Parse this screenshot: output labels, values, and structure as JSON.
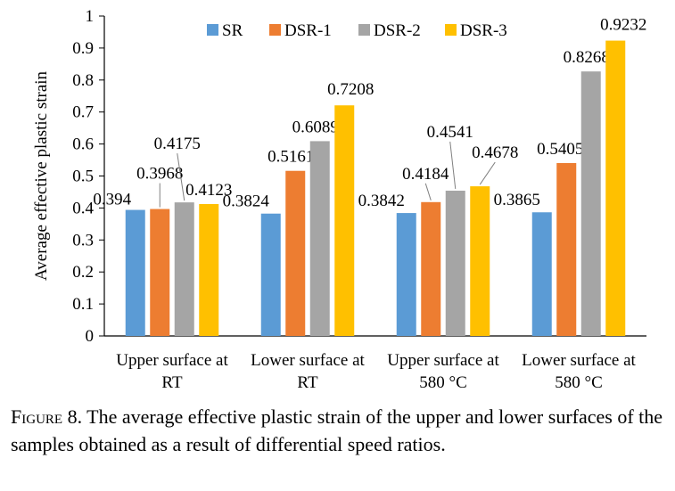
{
  "chart_data": {
    "type": "bar",
    "ylabel": "Average  effective plastic strain",
    "xlabel": "",
    "ylim": [
      0,
      1
    ],
    "yticks": [
      "0",
      "0.1",
      "0.2",
      "0.3",
      "0.4",
      "0.5",
      "0.6",
      "0.7",
      "0.8",
      "0.9",
      "1"
    ],
    "categories": [
      [
        "Upper surface at",
        "RT"
      ],
      [
        "Lower surface at",
        "RT"
      ],
      [
        "Upper surface at",
        "580 °C"
      ],
      [
        "Lower surface at",
        "580 °C"
      ]
    ],
    "series": [
      {
        "name": "SR",
        "color": "#5b9bd5",
        "values": [
          0.394,
          0.3824,
          0.3842,
          0.3865
        ],
        "labels": [
          "0.394",
          "0.3824",
          "0.3842",
          "0.3865"
        ]
      },
      {
        "name": "DSR-1",
        "color": "#ed7d31",
        "values": [
          0.3968,
          0.5161,
          0.4184,
          0.5405
        ],
        "labels": [
          "0.3968",
          "0.5161",
          "0.4184",
          "0.5405"
        ]
      },
      {
        "name": "DSR-2",
        "color": "#a5a5a5",
        "values": [
          0.4175,
          0.6089,
          0.4541,
          0.8268
        ],
        "labels": [
          "0.4175",
          "0.6089",
          "0.4541",
          "0.8268"
        ]
      },
      {
        "name": "DSR-3",
        "color": "#ffc000",
        "values": [
          0.4123,
          0.7208,
          0.4678,
          0.9232
        ],
        "labels": [
          "0.4123",
          "0.7208",
          "0.4678",
          "0.9232"
        ]
      }
    ],
    "legend_position": "top",
    "grid": false
  },
  "caption": {
    "label": "Figure 8.",
    "text": " The average effective plastic strain of the upper and lower surfaces of the samples obtained as a result of differential speed ratios."
  }
}
